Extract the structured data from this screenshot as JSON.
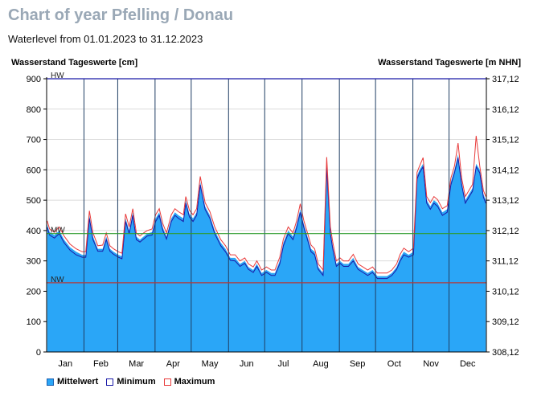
{
  "header": {
    "title": "Chart of year Pfelling / Donau",
    "subtitle": "Waterlevel from 01.01.2023 to 31.12.2023"
  },
  "chart_data": {
    "type": "area",
    "ylabel": "Wasserstand Tageswerte [cm]",
    "ylabel_right": "Wasserstand Tageswerte [m NHN]",
    "ylim": [
      0,
      900
    ],
    "yticks": [
      "0",
      "100",
      "200",
      "300",
      "400",
      "500",
      "600",
      "700",
      "800",
      "900"
    ],
    "yticks_right": [
      "308,12",
      "309,12",
      "310,12",
      "311,12",
      "312,12",
      "313,12",
      "314,12",
      "315,12",
      "316,12",
      "317,12"
    ],
    "months": [
      "Jan",
      "Feb",
      "Mar",
      "Apr",
      "May",
      "Jun",
      "Jul",
      "Aug",
      "Sep",
      "Oct",
      "Nov",
      "Dec"
    ],
    "days_in_months": [
      31,
      28,
      31,
      30,
      31,
      30,
      31,
      31,
      30,
      31,
      30,
      31
    ],
    "grid": true,
    "legend_position": "bottom-left",
    "reference_lines": [
      {
        "label": "HW",
        "value": 900,
        "color": "#1a1aa8"
      },
      {
        "label": "MW",
        "value": 390,
        "color": "#2e9b2e"
      },
      {
        "label": "NW",
        "value": 228,
        "color": "#b23a3a"
      }
    ],
    "series": [
      {
        "name": "Mittelwert",
        "color": "#2aa6f7",
        "style": "area",
        "x": [
          "2023-01-01",
          "2023-01-03",
          "2023-01-07",
          "2023-01-11",
          "2023-01-15",
          "2023-01-20",
          "2023-01-25",
          "2023-01-30",
          "2023-02-02",
          "2023-02-05",
          "2023-02-08",
          "2023-02-12",
          "2023-02-16",
          "2023-02-19",
          "2023-02-22",
          "2023-02-25",
          "2023-03-01",
          "2023-03-04",
          "2023-03-07",
          "2023-03-10",
          "2023-03-13",
          "2023-03-16",
          "2023-03-19",
          "2023-03-22",
          "2023-03-25",
          "2023-03-29",
          "2023-04-01",
          "2023-04-04",
          "2023-04-07",
          "2023-04-10",
          "2023-04-14",
          "2023-04-17",
          "2023-04-20",
          "2023-04-24",
          "2023-04-26",
          "2023-04-29",
          "2023-05-02",
          "2023-05-05",
          "2023-05-08",
          "2023-05-12",
          "2023-05-16",
          "2023-05-20",
          "2023-05-25",
          "2023-05-29",
          "2023-06-02",
          "2023-06-06",
          "2023-06-10",
          "2023-06-14",
          "2023-06-17",
          "2023-06-21",
          "2023-06-24",
          "2023-06-28",
          "2023-07-02",
          "2023-07-06",
          "2023-07-09",
          "2023-07-13",
          "2023-07-16",
          "2023-07-20",
          "2023-07-24",
          "2023-07-27",
          "2023-07-30",
          "2023-08-02",
          "2023-08-05",
          "2023-08-08",
          "2023-08-11",
          "2023-08-14",
          "2023-08-18",
          "2023-08-21",
          "2023-08-24",
          "2023-08-26",
          "2023-08-29",
          "2023-09-01",
          "2023-09-04",
          "2023-09-08",
          "2023-09-12",
          "2023-09-16",
          "2023-09-20",
          "2023-09-24",
          "2023-09-28",
          "2023-10-02",
          "2023-10-06",
          "2023-10-10",
          "2023-10-14",
          "2023-10-18",
          "2023-10-21",
          "2023-10-24",
          "2023-10-28",
          "2023-11-01",
          "2023-11-04",
          "2023-11-06",
          "2023-11-09",
          "2023-11-12",
          "2023-11-15",
          "2023-11-18",
          "2023-11-21",
          "2023-11-25",
          "2023-11-29",
          "2023-12-02",
          "2023-12-05",
          "2023-12-08",
          "2023-12-11",
          "2023-12-14",
          "2023-12-17",
          "2023-12-20",
          "2023-12-23",
          "2023-12-26",
          "2023-12-29",
          "2023-12-31"
        ],
        "values": [
          420,
          395,
          385,
          400,
          370,
          345,
          330,
          320,
          320,
          450,
          380,
          340,
          340,
          380,
          340,
          330,
          320,
          315,
          440,
          400,
          460,
          380,
          370,
          380,
          390,
          395,
          440,
          460,
          410,
          380,
          440,
          460,
          450,
          440,
          500,
          455,
          440,
          460,
          560,
          480,
          450,
          400,
          360,
          340,
          310,
          310,
          290,
          300,
          280,
          270,
          290,
          260,
          270,
          260,
          260,
          300,
          360,
          400,
          380,
          420,
          470,
          420,
          380,
          340,
          330,
          280,
          260,
          620,
          400,
          350,
          290,
          300,
          290,
          290,
          310,
          280,
          270,
          260,
          270,
          250,
          250,
          250,
          260,
          280,
          310,
          330,
          320,
          330,
          580,
          600,
          620,
          500,
          480,
          500,
          490,
          460,
          470,
          560,
          600,
          650,
          560,
          500,
          520,
          540,
          620,
          600,
          520,
          500
        ]
      },
      {
        "name": "Minimum",
        "color": "#1a1aa8",
        "style": "line",
        "x": [
          "2023-01-01",
          "2023-01-03",
          "2023-01-07",
          "2023-01-11",
          "2023-01-15",
          "2023-01-20",
          "2023-01-25",
          "2023-01-30",
          "2023-02-02",
          "2023-02-05",
          "2023-02-08",
          "2023-02-12",
          "2023-02-16",
          "2023-02-19",
          "2023-02-22",
          "2023-02-25",
          "2023-03-01",
          "2023-03-04",
          "2023-03-07",
          "2023-03-10",
          "2023-03-13",
          "2023-03-16",
          "2023-03-19",
          "2023-03-22",
          "2023-03-25",
          "2023-03-29",
          "2023-04-01",
          "2023-04-04",
          "2023-04-07",
          "2023-04-10",
          "2023-04-14",
          "2023-04-17",
          "2023-04-20",
          "2023-04-24",
          "2023-04-26",
          "2023-04-29",
          "2023-05-02",
          "2023-05-05",
          "2023-05-08",
          "2023-05-12",
          "2023-05-16",
          "2023-05-20",
          "2023-05-25",
          "2023-05-29",
          "2023-06-02",
          "2023-06-06",
          "2023-06-10",
          "2023-06-14",
          "2023-06-17",
          "2023-06-21",
          "2023-06-24",
          "2023-06-28",
          "2023-07-02",
          "2023-07-06",
          "2023-07-09",
          "2023-07-13",
          "2023-07-16",
          "2023-07-20",
          "2023-07-24",
          "2023-07-27",
          "2023-07-30",
          "2023-08-02",
          "2023-08-05",
          "2023-08-08",
          "2023-08-11",
          "2023-08-14",
          "2023-08-18",
          "2023-08-21",
          "2023-08-24",
          "2023-08-26",
          "2023-08-29",
          "2023-09-01",
          "2023-09-04",
          "2023-09-08",
          "2023-09-12",
          "2023-09-16",
          "2023-09-20",
          "2023-09-24",
          "2023-09-28",
          "2023-10-02",
          "2023-10-06",
          "2023-10-10",
          "2023-10-14",
          "2023-10-18",
          "2023-10-21",
          "2023-10-24",
          "2023-10-28",
          "2023-11-01",
          "2023-11-04",
          "2023-11-06",
          "2023-11-09",
          "2023-11-12",
          "2023-11-15",
          "2023-11-18",
          "2023-11-21",
          "2023-11-25",
          "2023-11-29",
          "2023-12-02",
          "2023-12-05",
          "2023-12-08",
          "2023-12-11",
          "2023-12-14",
          "2023-12-17",
          "2023-12-20",
          "2023-12-23",
          "2023-12-26",
          "2023-12-29",
          "2023-12-31"
        ],
        "values": [
          410,
          385,
          375,
          390,
          360,
          335,
          320,
          312,
          312,
          440,
          370,
          332,
          332,
          370,
          332,
          322,
          312,
          307,
          430,
          390,
          450,
          370,
          362,
          372,
          382,
          385,
          430,
          450,
          400,
          372,
          430,
          450,
          440,
          430,
          490,
          445,
          430,
          450,
          550,
          470,
          440,
          390,
          350,
          330,
          302,
          300,
          282,
          292,
          272,
          262,
          282,
          252,
          262,
          252,
          252,
          290,
          350,
          390,
          370,
          410,
          460,
          410,
          370,
          330,
          320,
          272,
          252,
          610,
          390,
          340,
          282,
          292,
          282,
          282,
          300,
          272,
          262,
          252,
          262,
          242,
          242,
          242,
          252,
          272,
          300,
          320,
          312,
          320,
          570,
          590,
          610,
          490,
          470,
          490,
          480,
          450,
          460,
          550,
          590,
          640,
          550,
          490,
          510,
          530,
          610,
          590,
          510,
          490
        ]
      },
      {
        "name": "Maximum",
        "color": "#e83a3a",
        "style": "line",
        "x": [
          "2023-01-01",
          "2023-01-03",
          "2023-01-07",
          "2023-01-11",
          "2023-01-15",
          "2023-01-20",
          "2023-01-25",
          "2023-01-30",
          "2023-02-02",
          "2023-02-05",
          "2023-02-08",
          "2023-02-12",
          "2023-02-16",
          "2023-02-19",
          "2023-02-22",
          "2023-02-25",
          "2023-03-01",
          "2023-03-04",
          "2023-03-07",
          "2023-03-10",
          "2023-03-13",
          "2023-03-16",
          "2023-03-19",
          "2023-03-22",
          "2023-03-25",
          "2023-03-29",
          "2023-04-01",
          "2023-04-04",
          "2023-04-07",
          "2023-04-10",
          "2023-04-14",
          "2023-04-17",
          "2023-04-20",
          "2023-04-24",
          "2023-04-26",
          "2023-04-29",
          "2023-05-02",
          "2023-05-05",
          "2023-05-08",
          "2023-05-12",
          "2023-05-16",
          "2023-05-20",
          "2023-05-25",
          "2023-05-29",
          "2023-06-02",
          "2023-06-06",
          "2023-06-10",
          "2023-06-14",
          "2023-06-17",
          "2023-06-21",
          "2023-06-24",
          "2023-06-28",
          "2023-07-02",
          "2023-07-06",
          "2023-07-09",
          "2023-07-13",
          "2023-07-16",
          "2023-07-20",
          "2023-07-24",
          "2023-07-27",
          "2023-07-30",
          "2023-08-02",
          "2023-08-05",
          "2023-08-08",
          "2023-08-11",
          "2023-08-14",
          "2023-08-18",
          "2023-08-21",
          "2023-08-24",
          "2023-08-26",
          "2023-08-29",
          "2023-09-01",
          "2023-09-04",
          "2023-09-08",
          "2023-09-12",
          "2023-09-16",
          "2023-09-20",
          "2023-09-24",
          "2023-09-28",
          "2023-10-02",
          "2023-10-06",
          "2023-10-10",
          "2023-10-14",
          "2023-10-18",
          "2023-10-21",
          "2023-10-24",
          "2023-10-28",
          "2023-11-01",
          "2023-11-04",
          "2023-11-06",
          "2023-11-09",
          "2023-11-12",
          "2023-11-15",
          "2023-11-18",
          "2023-11-21",
          "2023-11-25",
          "2023-11-29",
          "2023-12-02",
          "2023-12-05",
          "2023-12-08",
          "2023-12-11",
          "2023-12-14",
          "2023-12-17",
          "2023-12-20",
          "2023-12-23",
          "2023-12-26",
          "2023-12-29",
          "2023-12-31"
        ],
        "values": [
          432,
          405,
          395,
          412,
          382,
          355,
          340,
          330,
          330,
          465,
          392,
          350,
          352,
          392,
          350,
          340,
          330,
          325,
          455,
          412,
          472,
          392,
          382,
          392,
          400,
          405,
          452,
          472,
          422,
          392,
          452,
          472,
          462,
          452,
          512,
          467,
          452,
          472,
          578,
          492,
          462,
          412,
          370,
          350,
          320,
          320,
          300,
          310,
          290,
          280,
          300,
          270,
          280,
          270,
          270,
          312,
          372,
          412,
          392,
          432,
          488,
          432,
          392,
          352,
          340,
          290,
          270,
          642,
          412,
          362,
          300,
          310,
          300,
          300,
          322,
          290,
          280,
          270,
          280,
          260,
          260,
          260,
          270,
          290,
          322,
          342,
          330,
          342,
          592,
          612,
          640,
          512,
          492,
          512,
          502,
          472,
          482,
          572,
          612,
          688,
          572,
          512,
          532,
          552,
          712,
          612,
          532,
          512
        ]
      }
    ]
  },
  "legend": [
    {
      "label": "Mittelwert",
      "fill": "#2aa6f7",
      "border": "#1a5fb0"
    },
    {
      "label": "Minimum",
      "fill": "#ffffff",
      "border": "#1a1aa8"
    },
    {
      "label": "Maximum",
      "fill": "#ffffff",
      "border": "#e83a3a"
    }
  ]
}
